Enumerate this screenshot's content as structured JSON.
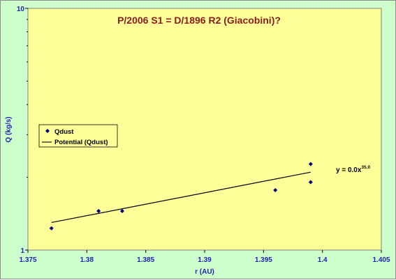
{
  "chart_data": {
    "type": "scatter",
    "title": "P/2006 S1 = D/1896 R2 (Giacobini)?",
    "xlabel": "r (AU)",
    "ylabel": "Q (kg/s)",
    "xlim": [
      1.375,
      1.405
    ],
    "ylim": [
      1,
      10
    ],
    "y_scale": "log",
    "x_ticks": [
      "1.375",
      "1.38",
      "1.385",
      "1.39",
      "1.395",
      "1.4",
      "1.405"
    ],
    "y_ticks": [
      "1",
      "10"
    ],
    "grid": false,
    "legend_position": "left",
    "series": [
      {
        "name": "Qdust",
        "kind": "points",
        "marker": "diamond",
        "color": "#000080",
        "points": [
          {
            "x": 1.377,
            "y": 1.23
          },
          {
            "x": 1.381,
            "y": 1.45
          },
          {
            "x": 1.383,
            "y": 1.45
          },
          {
            "x": 1.396,
            "y": 1.77
          },
          {
            "x": 1.399,
            "y": 1.91
          },
          {
            "x": 1.399,
            "y": 2.27
          }
        ]
      },
      {
        "name": "Potential (Qdust)",
        "kind": "trendline",
        "color": "#000000",
        "points": [
          {
            "x": 1.377,
            "y": 1.3
          },
          {
            "x": 1.399,
            "y": 2.1
          }
        ]
      }
    ],
    "annotation": {
      "text": "y = 0.0x",
      "superscript": "35.0"
    }
  },
  "colors": {
    "plot_background": "#ffff99",
    "outer_background": "#ccffcc",
    "axis_text": "#1f1fb4",
    "title_text": "#8b1a1a"
  }
}
